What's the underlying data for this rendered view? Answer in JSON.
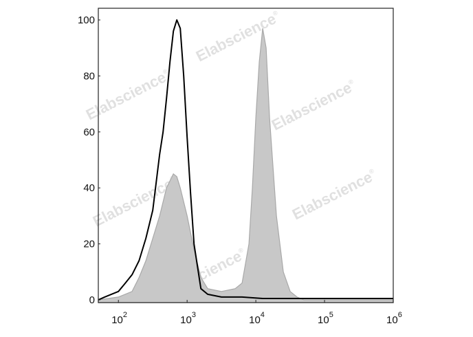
{
  "chart_data": {
    "type": "area",
    "xscale": "log",
    "xlim": [
      51,
      1000000
    ],
    "ylim": [
      0,
      105
    ],
    "x_ticks": [
      {
        "value": 100,
        "base": "10",
        "exp": "2"
      },
      {
        "value": 1000,
        "base": "10",
        "exp": "3"
      },
      {
        "value": 10000,
        "base": "10",
        "exp": "4"
      },
      {
        "value": 100000,
        "base": "10",
        "exp": "5"
      },
      {
        "value": 1000000,
        "base": "10",
        "exp": "6"
      }
    ],
    "y_ticks": [
      "0",
      "20",
      "40",
      "60",
      "80",
      "100"
    ],
    "grid": false,
    "series": [
      {
        "style": "filled",
        "color": "#c8c8c8",
        "edge_color": "#a8a8a8",
        "x": [
          51,
          100,
          158,
          200,
          251,
          316,
          398,
          501,
          631,
          708,
          794,
          1000,
          1259,
          1585,
          1995,
          3162,
          5012,
          6310,
          7943,
          8913,
          10000,
          11220,
          12589,
          14125,
          15849,
          19953,
          25119,
          31623,
          39811,
          50119,
          1000000
        ],
        "y": [
          0,
          1,
          3,
          8,
          14,
          22,
          30,
          40,
          45,
          44,
          40,
          30,
          18,
          8,
          4,
          3,
          4,
          6,
          20,
          40,
          65,
          85,
          97,
          90,
          65,
          30,
          10,
          3,
          1,
          0,
          0
        ]
      },
      {
        "style": "line",
        "color": "#000000",
        "x": [
          51,
          63,
          79,
          100,
          126,
          158,
          200,
          251,
          316,
          355,
          398,
          447,
          501,
          562,
          631,
          708,
          794,
          891,
          1000,
          1122,
          1259,
          1413,
          1585,
          1995,
          3162,
          6310,
          12589,
          1000000
        ],
        "y": [
          0,
          1,
          2,
          3,
          6,
          9,
          14,
          22,
          32,
          42,
          52,
          60,
          72,
          85,
          96,
          100,
          97,
          80,
          58,
          38,
          20,
          12,
          4,
          2,
          1,
          1,
          0.5,
          0.5
        ]
      }
    ]
  },
  "watermark": {
    "text": "Elabscience",
    "mark": "®"
  }
}
